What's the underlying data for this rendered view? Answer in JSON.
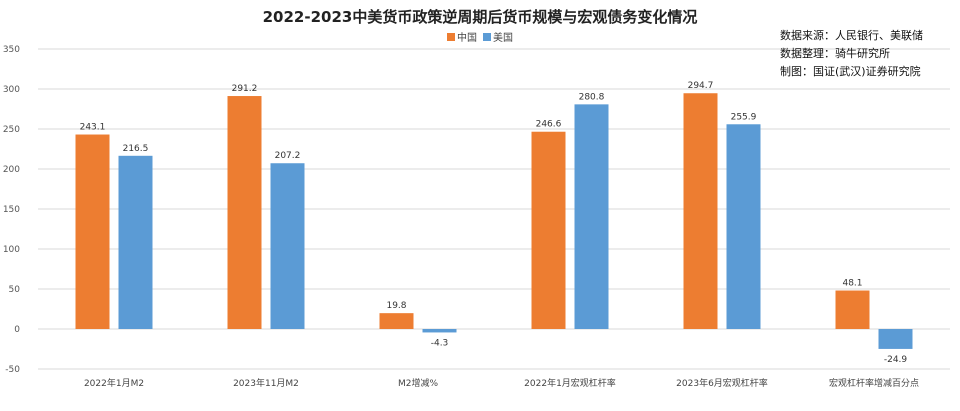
{
  "chart_data": {
    "type": "bar",
    "title": "2022-2023中美货币政策逆周期后货币规模与宏观债务变化情况",
    "categories": [
      "2022年1月M2",
      "2023年11月M2",
      "M2增减%",
      "2022年1月宏观杠杆率",
      "2023年6月宏观杠杆率",
      "宏观杠杆率增减百分点"
    ],
    "series": [
      {
        "name": "中国",
        "color": "#ED7D31",
        "values": [
          243.1,
          291.2,
          19.8,
          246.6,
          294.7,
          48.1
        ]
      },
      {
        "name": "美国",
        "color": "#5B9BD5",
        "values": [
          216.5,
          207.2,
          -4.3,
          280.8,
          255.9,
          -24.9
        ]
      }
    ],
    "ylim": [
      -50,
      350
    ],
    "yticks": [
      -50,
      0,
      50,
      100,
      150,
      200,
      250,
      300,
      350
    ],
    "grid": true,
    "legend_position": "top-center"
  },
  "notes": {
    "source": "数据来源：人民银行、美联储",
    "compiled": "数据整理：骑牛研究所",
    "chart_by": "制图：国证(武汉)证券研究院"
  }
}
